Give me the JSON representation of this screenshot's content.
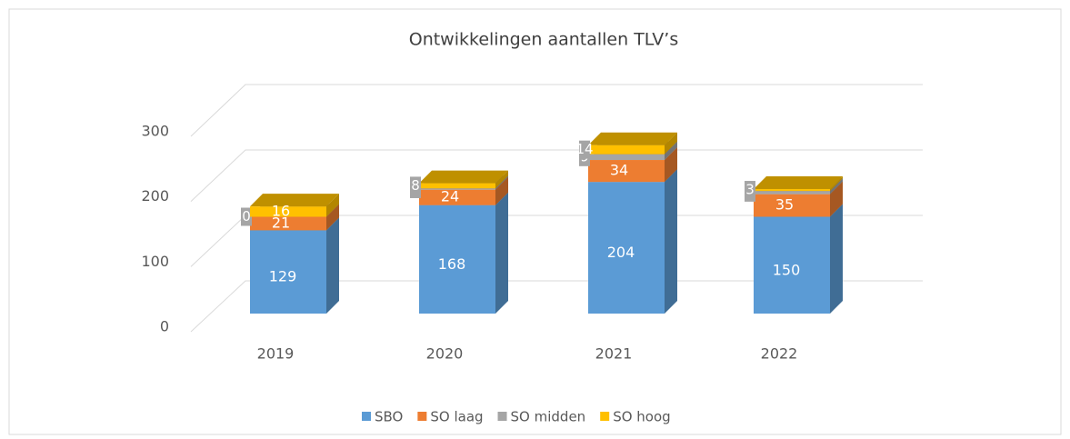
{
  "chart_data": {
    "type": "bar3d_stacked",
    "title": "Ontwikkelingen aantallen TLV’s",
    "categories": [
      "2019",
      "2020",
      "2021",
      "2022"
    ],
    "series": [
      {
        "name": "SBO",
        "color": "#5b9bd5",
        "values": [
          129,
          168,
          204,
          150
        ]
      },
      {
        "name": "SO laag",
        "color": "#ed7d31",
        "values": [
          21,
          24,
          34,
          35
        ]
      },
      {
        "name": "SO midden",
        "color": "#a5a5a5",
        "values": [
          0,
          2,
          9,
          5
        ]
      },
      {
        "name": "SO hoog",
        "color": "#ffc000",
        "values": [
          16,
          8,
          14,
          3
        ]
      }
    ],
    "ylim": [
      0,
      300
    ],
    "yticks": [
      0,
      100,
      200,
      300
    ],
    "grid": true,
    "legend": "bottom"
  }
}
